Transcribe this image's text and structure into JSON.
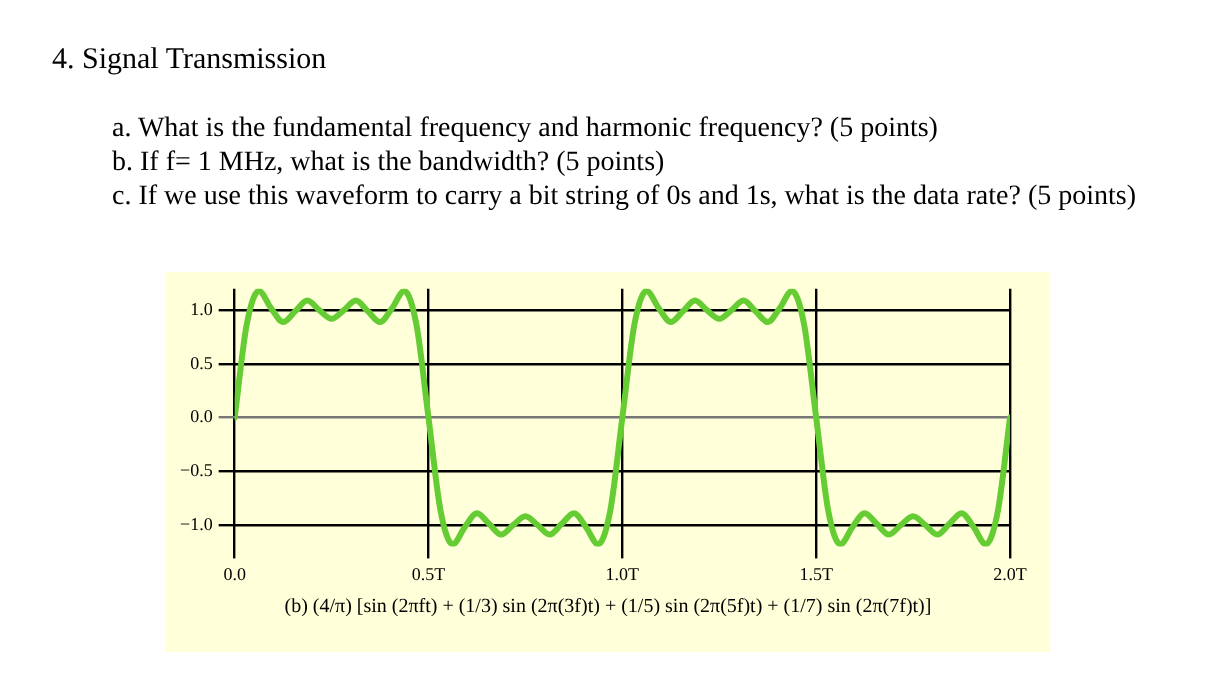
{
  "chart_data": {
    "type": "line",
    "title": "4. Signal Transmission",
    "annotations": [
      "a. What is the fundamental frequency and harmonic frequency? (5 points)",
      "b. If f= 1 MHz, what is the bandwidth? (5 points)",
      "c. If we use this waveform to carry a bit string of 0s and 1s, what is the data rate? (5 points)",
      "(b) (4/π) [sin (2πft) + (1/3) sin (2π(3f)t) + (1/5) sin (2π(5f)t) + (1/7) sin (2π(7f)t)]"
    ],
    "series": [
      {
        "color": "#66cc33",
        "x": [
          0,
          0.03125,
          0.0625,
          0.09375,
          0.125,
          0.15625,
          0.1875,
          0.21875,
          0.25,
          0.28125,
          0.3125,
          0.34375,
          0.375,
          0.40625,
          0.4375,
          0.46875,
          0.5,
          0.53125,
          0.5625,
          0.59375,
          0.625,
          0.65625,
          0.6875,
          0.71875,
          0.75,
          0.78125,
          0.8125,
          0.84375,
          0.875,
          0.90625,
          0.9375,
          0.96875,
          1,
          1.03125,
          1.0625,
          1.09375,
          1.125,
          1.15625,
          1.1875,
          1.21875,
          1.25,
          1.28125,
          1.3125,
          1.34375,
          1.375,
          1.40625,
          1.4375,
          1.46875,
          1.5,
          1.53125,
          1.5625,
          1.59375,
          1.625,
          1.65625,
          1.6875,
          1.71875,
          1.75,
          1.78125,
          1.8125,
          1.84375,
          1.875,
          1.90625,
          1.9375,
          1.96875,
          2
        ],
        "values": [
          0,
          0.87,
          1.18,
          1.02,
          0.89,
          0.99,
          1.09,
          1.0,
          0.92,
          1.0,
          1.09,
          0.99,
          0.89,
          1.02,
          1.18,
          0.87,
          0,
          -0.87,
          -1.18,
          -1.02,
          -0.89,
          -0.99,
          -1.09,
          -1.0,
          -0.92,
          -1.0,
          -1.09,
          -0.99,
          -0.89,
          -1.02,
          -1.18,
          -0.87,
          0,
          0.87,
          1.18,
          1.02,
          0.89,
          0.99,
          1.09,
          1.0,
          0.92,
          1.0,
          1.09,
          0.99,
          0.89,
          1.02,
          1.18,
          0.87,
          0,
          -0.87,
          -1.18,
          -1.02,
          -0.89,
          -0.99,
          -1.09,
          -1.0,
          -0.92,
          -1.0,
          -1.09,
          -0.99,
          -0.89,
          -1.02,
          -1.18,
          -0.87,
          0
        ]
      }
    ],
    "xlim": [
      0,
      2
    ],
    "xticks": [
      {
        "value": 0,
        "label": "0.0"
      },
      {
        "value": 0.5,
        "label": "0.5T"
      },
      {
        "value": 1,
        "label": "1.0T"
      },
      {
        "value": 1.5,
        "label": "1.5T"
      },
      {
        "value": 2,
        "label": "2.0T"
      }
    ],
    "ylim": [
      -1.2,
      1.2
    ],
    "yticks": [
      {
        "value": -1,
        "label": "−1.0"
      },
      {
        "value": -0.5,
        "label": "−0.5"
      },
      {
        "value": 0,
        "label": "0.0"
      },
      {
        "value": 0.5,
        "label": "0.5"
      },
      {
        "value": 1,
        "label": "1.0"
      }
    ],
    "grid": true,
    "legend": false,
    "marker": "none",
    "line_style": "solid"
  }
}
